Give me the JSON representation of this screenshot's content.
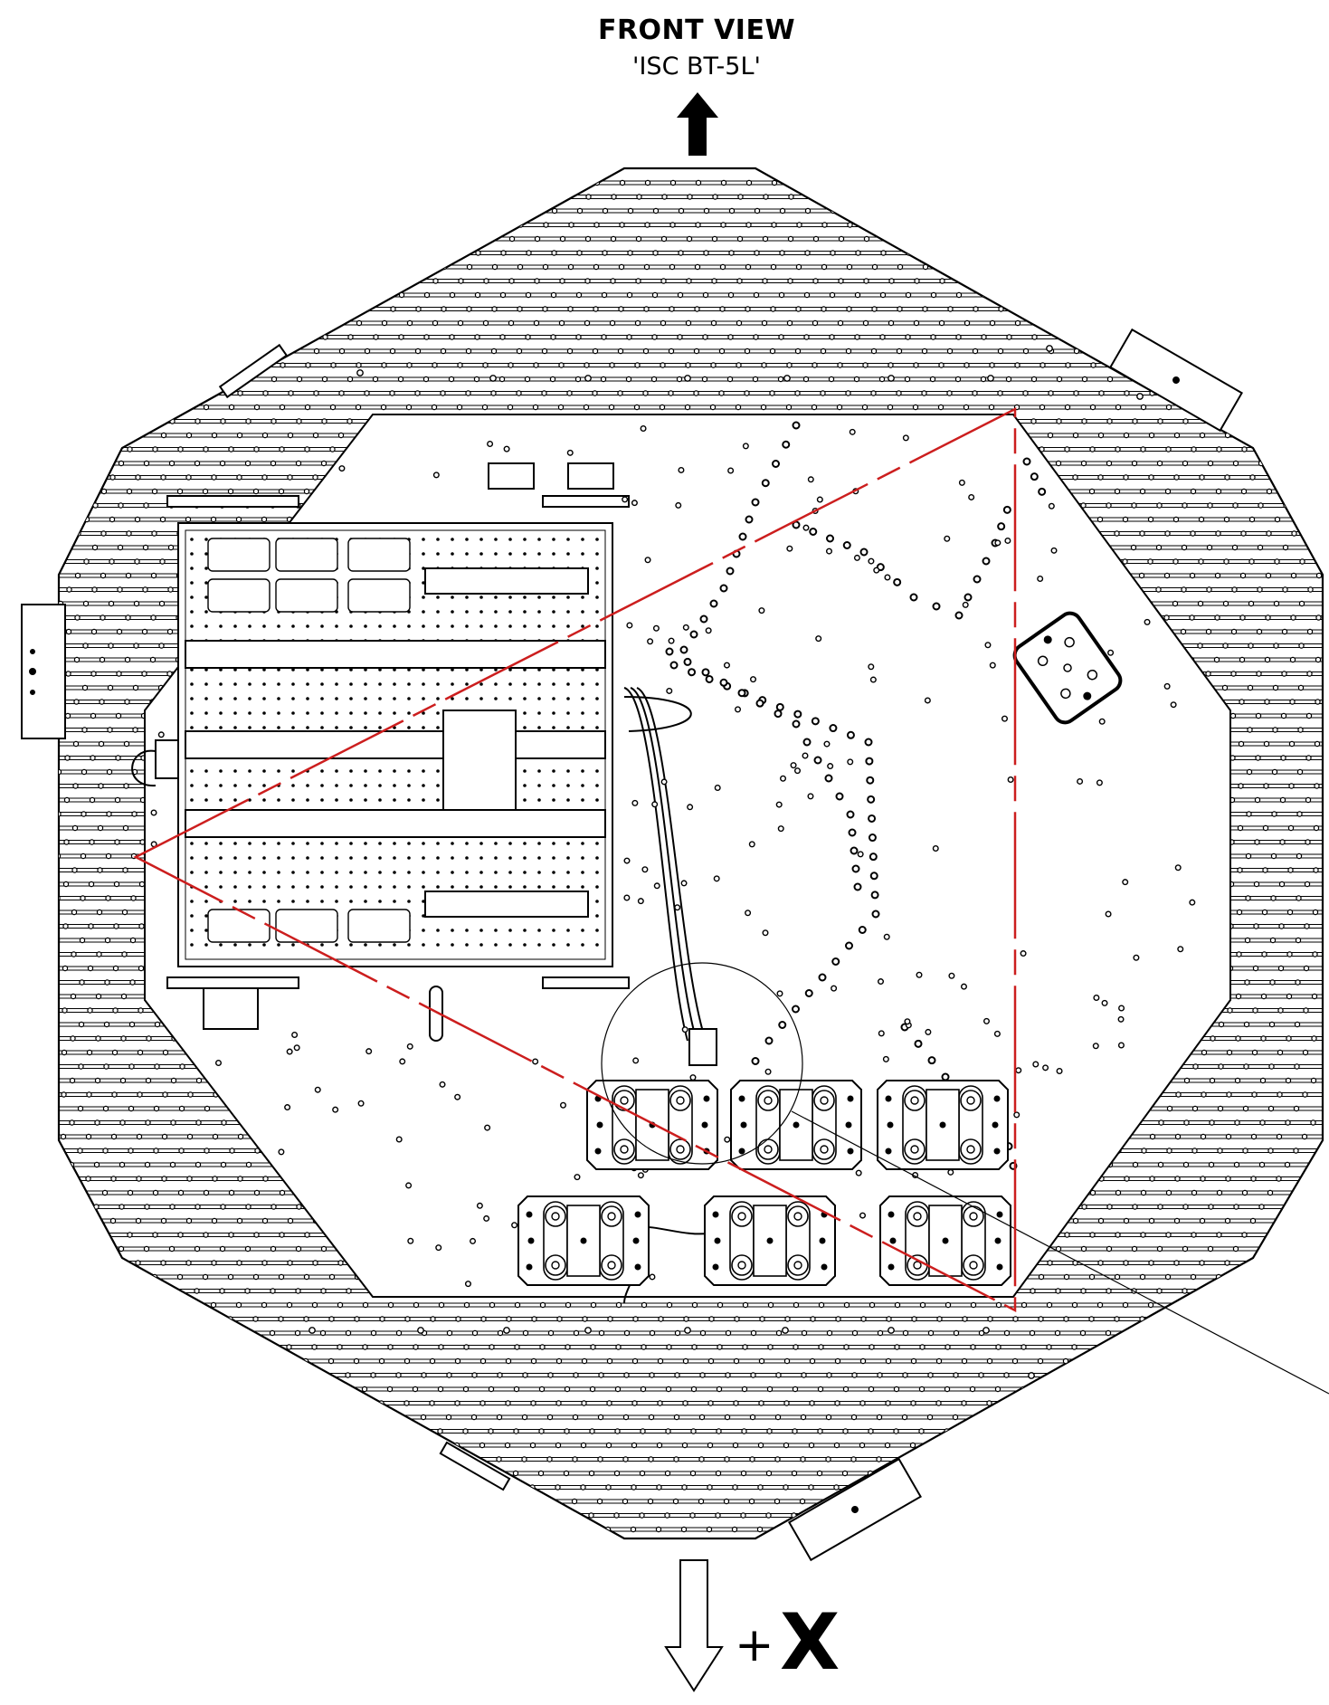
{
  "header": {
    "title": "FRONT VIEW",
    "subtitle": "'ISC BT-5L'"
  },
  "axis": {
    "plus": "+",
    "label": "X"
  },
  "colors": {
    "ink": "#000000",
    "sight_line": "#cc1e1e"
  },
  "icons": {
    "front_arrow": "arrow-up-icon",
    "axis_arrow": "arrow-down-icon"
  }
}
